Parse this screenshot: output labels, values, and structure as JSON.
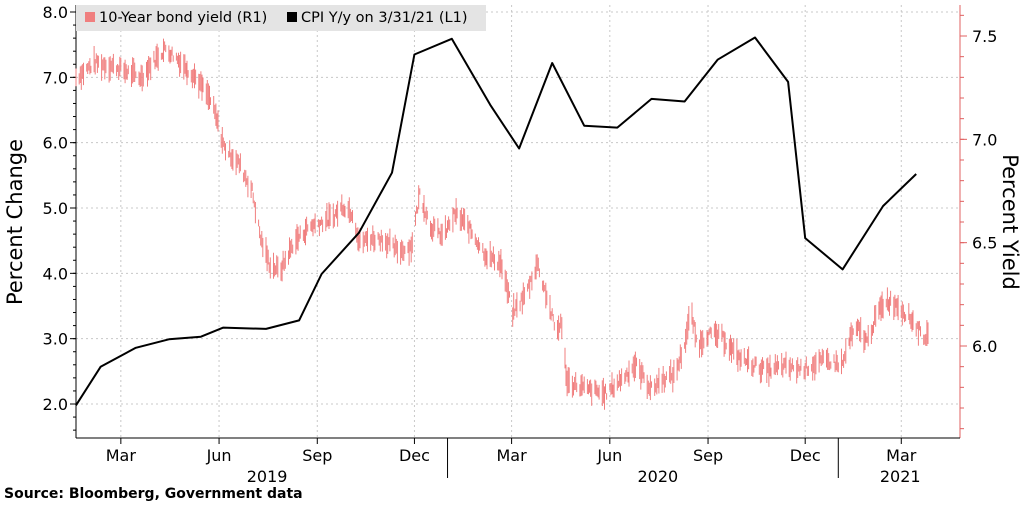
{
  "chart_data": {
    "type": "line",
    "source": "Source: Bloomberg, Government data",
    "ylabel_left": "Percent Change",
    "ylabel_right": "Percent Yield",
    "ylim_left": [
      1.5,
      8.0
    ],
    "ylim_right": [
      5.55,
      7.62
    ],
    "yticks_left": [
      "2.0",
      "3.0",
      "4.0",
      "5.0",
      "6.0",
      "7.0",
      "8.0"
    ],
    "yticks_right": [
      "6.0",
      "6.5",
      "7.0",
      "7.5"
    ],
    "x_ticks": [
      {
        "label": "Mar",
        "date": "2019-03-01"
      },
      {
        "label": "Jun",
        "date": "2019-06-01"
      },
      {
        "label": "Sep",
        "date": "2019-09-01"
      },
      {
        "label": "Dec",
        "date": "2019-12-01"
      },
      {
        "label": "Mar",
        "date": "2020-03-01"
      },
      {
        "label": "Jun",
        "date": "2020-06-01"
      },
      {
        "label": "Sep",
        "date": "2020-09-01"
      },
      {
        "label": "Dec",
        "date": "2020-12-01"
      },
      {
        "label": "Mar",
        "date": "2021-03-01"
      }
    ],
    "x_year_labels": [
      {
        "label": "2019",
        "date": "2019-07-16"
      },
      {
        "label": "2020",
        "date": "2020-07-16"
      },
      {
        "label": "2021",
        "date": "2021-02-28"
      }
    ],
    "xlim": [
      "2019-01-18",
      "2021-04-25"
    ],
    "grid": true,
    "legend_position": "top-left",
    "colors": {
      "cpi": "#000000",
      "yield": "#f07f7f",
      "right_axis": "#e06060",
      "grid": "#c8c8c8"
    },
    "series": [
      {
        "name": "CPI Y/y on 3/31/21 (L1)",
        "axis": "left",
        "color": "#000000",
        "points": [
          [
            "2019-01-18",
            1.98
          ],
          [
            "2019-02-10",
            2.57
          ],
          [
            "2019-03-15",
            2.86
          ],
          [
            "2019-04-15",
            2.99
          ],
          [
            "2019-05-15",
            3.03
          ],
          [
            "2019-06-05",
            3.17
          ],
          [
            "2019-07-15",
            3.15
          ],
          [
            "2019-08-15",
            3.28
          ],
          [
            "2019-09-05",
            3.99
          ],
          [
            "2019-10-10",
            4.62
          ],
          [
            "2019-11-10",
            5.54
          ],
          [
            "2019-12-01",
            7.35
          ],
          [
            "2020-01-05",
            7.59
          ],
          [
            "2020-02-10",
            6.58
          ],
          [
            "2020-03-08",
            5.91
          ],
          [
            "2020-04-08",
            7.22
          ],
          [
            "2020-05-08",
            6.26
          ],
          [
            "2020-06-08",
            6.23
          ],
          [
            "2020-07-10",
            6.67
          ],
          [
            "2020-08-10",
            6.63
          ],
          [
            "2020-09-10",
            7.27
          ],
          [
            "2020-10-15",
            7.61
          ],
          [
            "2020-11-15",
            6.93
          ],
          [
            "2020-12-01",
            4.54
          ],
          [
            "2021-01-05",
            4.06
          ],
          [
            "2021-02-12",
            5.03
          ],
          [
            "2021-03-15",
            5.52
          ]
        ]
      },
      {
        "name": "10-Year bond yield (R1)",
        "axis": "right",
        "color": "#f07f7f",
        "points": [
          [
            "2019-01-18",
            7.3
          ],
          [
            "2019-02-05",
            7.37
          ],
          [
            "2019-02-25",
            7.35
          ],
          [
            "2019-03-10",
            7.32
          ],
          [
            "2019-03-20",
            7.3
          ],
          [
            "2019-04-01",
            7.38
          ],
          [
            "2019-04-12",
            7.44
          ],
          [
            "2019-04-25",
            7.38
          ],
          [
            "2019-05-10",
            7.3
          ],
          [
            "2019-05-25",
            7.18
          ],
          [
            "2019-06-06",
            6.96
          ],
          [
            "2019-06-20",
            6.88
          ],
          [
            "2019-07-02",
            6.75
          ],
          [
            "2019-07-10",
            6.52
          ],
          [
            "2019-07-18",
            6.4
          ],
          [
            "2019-07-28",
            6.36
          ],
          [
            "2019-08-10",
            6.5
          ],
          [
            "2019-08-25",
            6.58
          ],
          [
            "2019-09-05",
            6.6
          ],
          [
            "2019-09-15",
            6.62
          ],
          [
            "2019-09-25",
            6.68
          ],
          [
            "2019-10-05",
            6.64
          ],
          [
            "2019-10-10",
            6.5
          ],
          [
            "2019-10-20",
            6.52
          ],
          [
            "2019-11-01",
            6.52
          ],
          [
            "2019-11-15",
            6.46
          ],
          [
            "2019-11-28",
            6.48
          ],
          [
            "2019-12-06",
            6.74
          ],
          [
            "2019-12-16",
            6.58
          ],
          [
            "2019-12-28",
            6.53
          ],
          [
            "2020-01-08",
            6.64
          ],
          [
            "2020-01-20",
            6.58
          ],
          [
            "2020-01-25",
            6.54
          ],
          [
            "2020-02-06",
            6.44
          ],
          [
            "2020-02-20",
            6.4
          ],
          [
            "2020-03-02",
            6.16
          ],
          [
            "2020-03-15",
            6.26
          ],
          [
            "2020-03-25",
            6.4
          ],
          [
            "2020-04-03",
            6.24
          ],
          [
            "2020-04-12",
            6.06
          ],
          [
            "2020-04-16",
            6.12
          ],
          [
            "2020-04-22",
            5.83
          ],
          [
            "2020-05-10",
            5.79
          ],
          [
            "2020-05-28",
            5.77
          ],
          [
            "2020-06-10",
            5.83
          ],
          [
            "2020-06-25",
            5.91
          ],
          [
            "2020-07-10",
            5.79
          ],
          [
            "2020-07-20",
            5.84
          ],
          [
            "2020-08-01",
            5.86
          ],
          [
            "2020-08-10",
            6.01
          ],
          [
            "2020-08-16",
            6.17
          ],
          [
            "2020-08-22",
            6.0
          ],
          [
            "2020-09-01",
            6.06
          ],
          [
            "2020-09-15",
            6.04
          ],
          [
            "2020-09-28",
            5.95
          ],
          [
            "2020-10-10",
            5.92
          ],
          [
            "2020-10-25",
            5.88
          ],
          [
            "2020-11-10",
            5.9
          ],
          [
            "2020-11-25",
            5.89
          ],
          [
            "2020-12-05",
            5.9
          ],
          [
            "2020-12-20",
            5.93
          ],
          [
            "2021-01-05",
            5.91
          ],
          [
            "2021-01-12",
            6.04
          ],
          [
            "2021-01-20",
            6.08
          ],
          [
            "2021-01-28",
            6.02
          ],
          [
            "2021-02-05",
            6.14
          ],
          [
            "2021-02-15",
            6.22
          ],
          [
            "2021-02-25",
            6.2
          ],
          [
            "2021-03-05",
            6.16
          ],
          [
            "2021-03-12",
            6.12
          ],
          [
            "2021-03-20",
            6.06
          ],
          [
            "2021-03-28",
            6.03
          ]
        ]
      }
    ]
  }
}
